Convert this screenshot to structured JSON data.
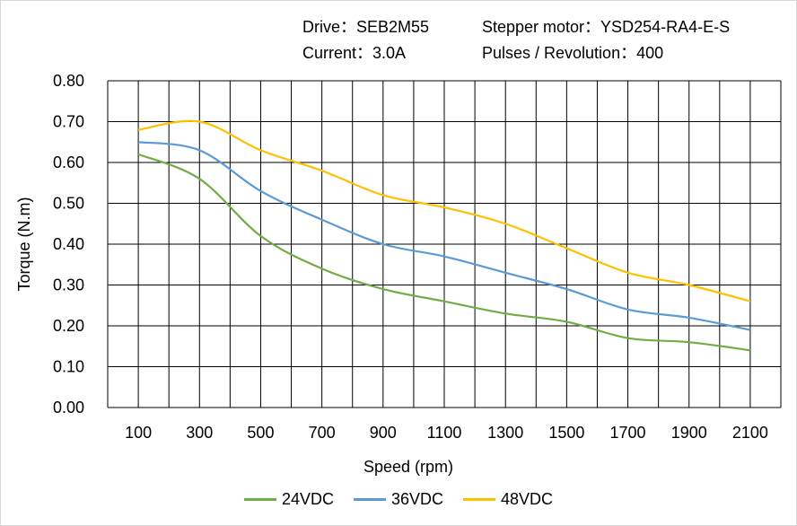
{
  "header": {
    "drive": "Drive：SEB2M55",
    "motor": "Stepper  motor：YSD254-RA4-E-S",
    "current": "Current：3.0A",
    "pulses": "Pulses / Revolution：400"
  },
  "chart_data": {
    "type": "line",
    "title": "",
    "xlabel": "Speed  (rpm)",
    "ylabel": "Torque (N.m)",
    "xlim": [
      0,
      2200
    ],
    "ylim": [
      0,
      0.8
    ],
    "grid": true,
    "legend": "bottom",
    "x": [
      100,
      300,
      500,
      700,
      900,
      1100,
      1300,
      1500,
      1700,
      1900,
      2100
    ],
    "xticks": [
      "100",
      "300",
      "500",
      "700",
      "900",
      "1100",
      "1300",
      "1500",
      "1700",
      "1900",
      "2100"
    ],
    "yticks": [
      "0.00",
      "0.10",
      "0.20",
      "0.30",
      "0.40",
      "0.50",
      "0.60",
      "0.70",
      "0.80"
    ],
    "series": [
      {
        "name": "24VDC",
        "color": "#70ad47",
        "values": [
          0.62,
          0.56,
          0.42,
          0.34,
          0.29,
          0.26,
          0.23,
          0.21,
          0.17,
          0.16,
          0.14
        ]
      },
      {
        "name": "36VDC",
        "color": "#5b9bd5",
        "values": [
          0.65,
          0.63,
          0.53,
          0.46,
          0.4,
          0.37,
          0.33,
          0.29,
          0.24,
          0.22,
          0.19
        ]
      },
      {
        "name": "48VDC",
        "color": "#ffc000",
        "values": [
          0.68,
          0.7,
          0.63,
          0.58,
          0.52,
          0.49,
          0.45,
          0.39,
          0.33,
          0.3,
          0.26
        ]
      }
    ]
  }
}
